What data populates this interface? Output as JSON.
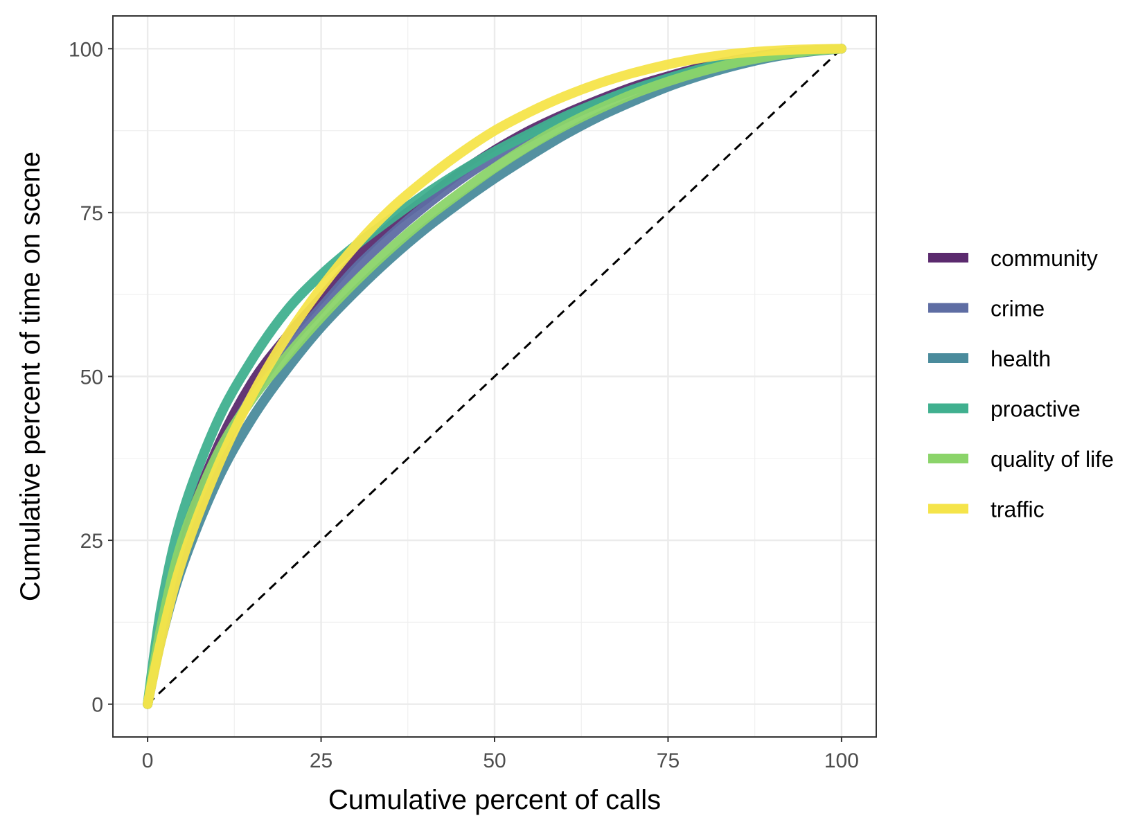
{
  "chart_data": {
    "type": "line",
    "title": "",
    "xlabel": "Cumulative percent of calls",
    "ylabel": "Cumulative percent of time on scene",
    "xlim": [
      -5,
      105
    ],
    "ylim": [
      -5,
      105
    ],
    "x_ticks": [
      0,
      25,
      50,
      75,
      100
    ],
    "y_ticks": [
      0,
      25,
      50,
      75,
      100
    ],
    "x_tick_labels": [
      "0",
      "25",
      "50",
      "75",
      "100"
    ],
    "y_tick_labels": [
      "0",
      "25",
      "50",
      "75",
      "100"
    ],
    "grid": true,
    "legend_position": "right",
    "reference_line": {
      "style": "dashed",
      "color": "#000000",
      "x": [
        0,
        100
      ],
      "y": [
        0,
        100
      ]
    },
    "series": [
      {
        "name": "community",
        "color": "#5B2A6E",
        "x": [
          0,
          2,
          5,
          10,
          15,
          20,
          25,
          30,
          35,
          40,
          45,
          50,
          55,
          60,
          65,
          70,
          75,
          80,
          85,
          90,
          95,
          100
        ],
        "y": [
          0,
          12,
          25,
          39,
          49,
          56,
          62,
          68,
          73,
          77,
          81,
          84.5,
          87.5,
          90,
          92.2,
          94.2,
          95.8,
          97.2,
          98.3,
          99.2,
          99.7,
          100
        ]
      },
      {
        "name": "crime",
        "color": "#5E6DA3",
        "x": [
          0,
          2,
          5,
          10,
          15,
          20,
          25,
          30,
          35,
          40,
          45,
          50,
          55,
          60,
          65,
          70,
          75,
          80,
          85,
          90,
          95,
          100
        ],
        "y": [
          0,
          11,
          23,
          37,
          47,
          54.5,
          60.5,
          66.5,
          71.5,
          76,
          80,
          83.5,
          86.5,
          89.3,
          91.7,
          93.7,
          95.4,
          96.9,
          98.1,
          99,
          99.6,
          100
        ]
      },
      {
        "name": "health",
        "color": "#4A8B9C",
        "x": [
          0,
          2,
          5,
          10,
          15,
          20,
          25,
          30,
          35,
          40,
          45,
          50,
          55,
          60,
          65,
          70,
          75,
          80,
          85,
          90,
          95,
          100
        ],
        "y": [
          0,
          10,
          21,
          34,
          43.5,
          51,
          57.5,
          63,
          68,
          72.5,
          76.5,
          80.2,
          83.6,
          86.8,
          89.6,
          92,
          94.2,
          96,
          97.5,
          98.7,
          99.5,
          100
        ]
      },
      {
        "name": "proactive",
        "color": "#40B08F",
        "x": [
          0,
          2,
          5,
          10,
          15,
          20,
          25,
          30,
          35,
          40,
          45,
          50,
          55,
          60,
          65,
          70,
          75,
          80,
          85,
          90,
          95,
          100
        ],
        "y": [
          0,
          15,
          29,
          43,
          52.5,
          60,
          65.5,
          70,
          74,
          77.8,
          81.2,
          84.3,
          87,
          89.6,
          91.8,
          93.8,
          95.5,
          97,
          98.2,
          99.1,
          99.7,
          100
        ]
      },
      {
        "name": "quality of life",
        "color": "#8BD46A",
        "x": [
          0,
          2,
          5,
          10,
          15,
          20,
          25,
          30,
          35,
          40,
          45,
          50,
          55,
          60,
          65,
          70,
          75,
          80,
          85,
          90,
          95,
          100
        ],
        "y": [
          0,
          12,
          25,
          38,
          46.5,
          53,
          59,
          64.5,
          69.5,
          74,
          78,
          81.8,
          85.2,
          88.2,
          90.8,
          93.1,
          95,
          96.6,
          97.9,
          98.9,
          99.6,
          100
        ]
      },
      {
        "name": "traffic",
        "color": "#F5E44A",
        "x": [
          0,
          2,
          5,
          10,
          15,
          20,
          25,
          30,
          35,
          40,
          45,
          50,
          55,
          60,
          65,
          70,
          75,
          80,
          85,
          90,
          95,
          100
        ],
        "y": [
          0,
          10,
          22,
          36,
          47,
          56,
          63.5,
          70,
          75.5,
          80,
          84,
          87.5,
          90.3,
          92.7,
          94.7,
          96.3,
          97.6,
          98.6,
          99.3,
          99.7,
          99.9,
          100
        ]
      }
    ]
  }
}
